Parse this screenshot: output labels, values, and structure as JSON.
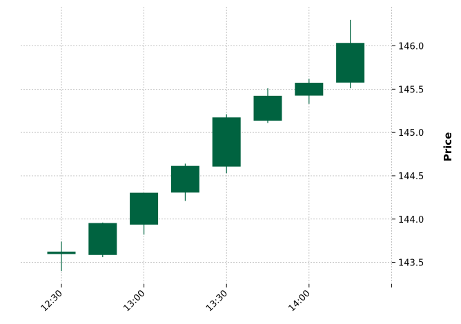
{
  "chart_data": {
    "type": "candlestick",
    "title": "",
    "xlabel": "",
    "ylabel": "Price",
    "ylim": [
      143.25,
      146.45
    ],
    "grid": true,
    "colors": {
      "up": "#006340"
    },
    "x_ticks": [
      {
        "label": "12:30",
        "index": 0
      },
      {
        "label": "13:00",
        "index": 2
      },
      {
        "label": "13:30",
        "index": 4
      },
      {
        "label": "14:00",
        "index": 6
      },
      {
        "label": "",
        "index": 8
      }
    ],
    "y_ticks": [
      {
        "value": 143.5,
        "label": "143.5"
      },
      {
        "value": 144.0,
        "label": "144.0"
      },
      {
        "value": 144.5,
        "label": "144.5"
      },
      {
        "value": 145.0,
        "label": "145.0"
      },
      {
        "value": 145.5,
        "label": "145.5"
      },
      {
        "value": 146.0,
        "label": "146.0"
      }
    ],
    "candles": [
      {
        "time": "12:30",
        "open": 143.6,
        "high": 143.74,
        "low": 143.4,
        "close": 143.62
      },
      {
        "time": "12:45",
        "open": 143.59,
        "high": 143.96,
        "low": 143.56,
        "close": 143.95
      },
      {
        "time": "13:00",
        "open": 143.94,
        "high": 144.3,
        "low": 143.82,
        "close": 144.3
      },
      {
        "time": "13:15",
        "open": 144.31,
        "high": 144.64,
        "low": 144.21,
        "close": 144.61
      },
      {
        "time": "13:30",
        "open": 144.61,
        "high": 145.21,
        "low": 144.53,
        "close": 145.17
      },
      {
        "time": "13:45",
        "open": 145.14,
        "high": 145.51,
        "low": 145.11,
        "close": 145.42
      },
      {
        "time": "14:00",
        "open": 145.43,
        "high": 145.62,
        "low": 145.33,
        "close": 145.57
      },
      {
        "time": "14:15",
        "open": 145.58,
        "high": 146.3,
        "low": 145.51,
        "close": 146.03
      }
    ]
  }
}
